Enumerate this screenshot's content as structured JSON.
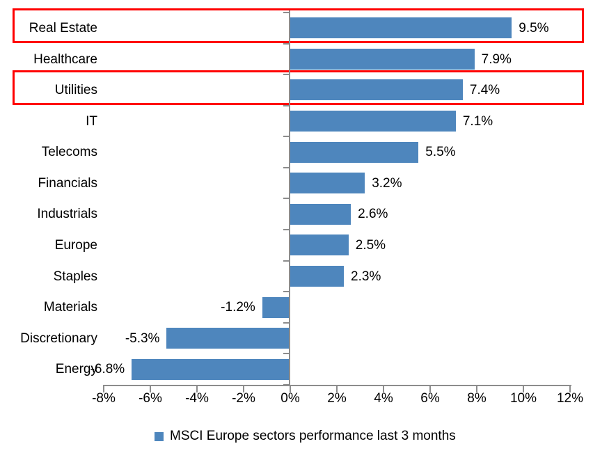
{
  "chart_data": {
    "type": "bar",
    "orientation": "horizontal",
    "categories": [
      "Real Estate",
      "Healthcare",
      "Utilities",
      "IT",
      "Telecoms",
      "Financials",
      "Industrials",
      "Europe",
      "Staples",
      "Materials",
      "Discretionary",
      "Energy"
    ],
    "values": [
      9.5,
      7.9,
      7.4,
      7.1,
      5.5,
      3.2,
      2.6,
      2.5,
      2.3,
      -1.2,
      -5.3,
      -6.8
    ],
    "value_labels": [
      "9.5%",
      "7.9%",
      "7.4%",
      "7.1%",
      "5.5%",
      "3.2%",
      "2.6%",
      "2.5%",
      "2.3%",
      "-1.2%",
      "-5.3%",
      "-6.8%"
    ],
    "xlabel": "",
    "ylabel": "",
    "x_tick_labels": [
      "-8%",
      "-6%",
      "-4%",
      "-2%",
      "0%",
      "2%",
      "4%",
      "6%",
      "8%",
      "10%",
      "12%"
    ],
    "x_axis_range_pct": [
      -8,
      12
    ],
    "x_tick_step_pct": 2,
    "grid": "off",
    "legend": {
      "position": "bottom",
      "label": "MSCI Europe sectors performance last 3 months"
    },
    "highlighted_categories": [
      "Real Estate",
      "Utilities"
    ],
    "colors": {
      "bar": "#4e86bd",
      "highlight_box": "#ff0000",
      "axis": "#8c8c8c",
      "text": "#000000"
    }
  }
}
